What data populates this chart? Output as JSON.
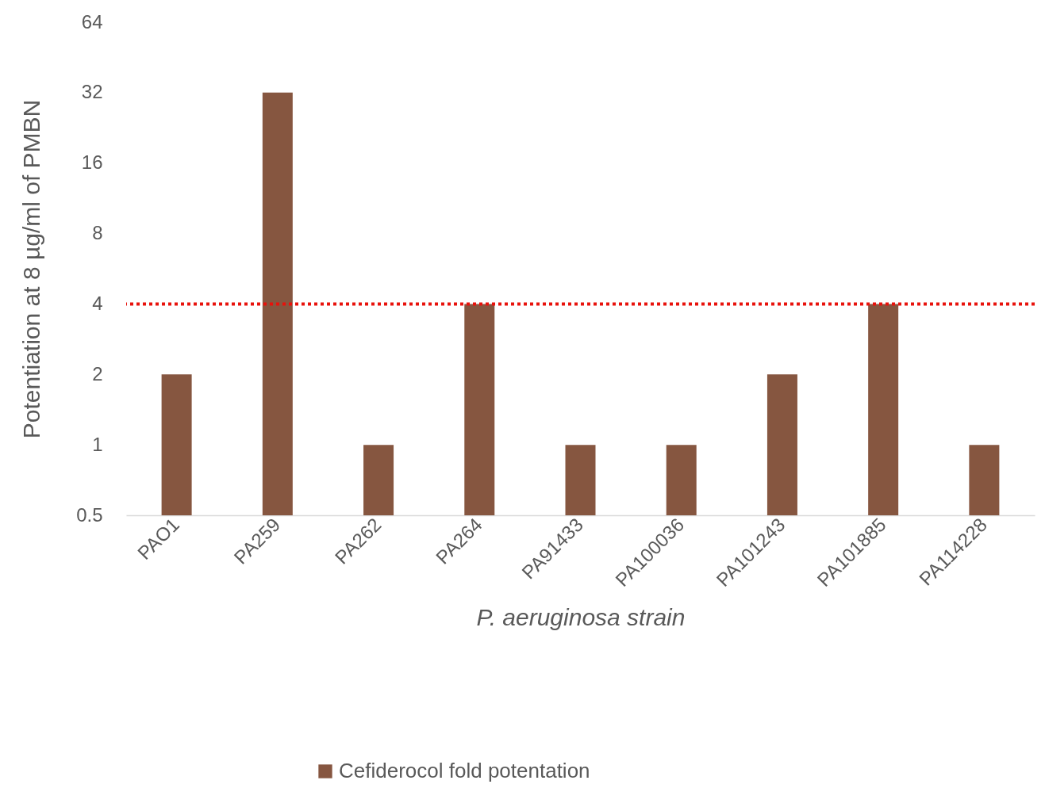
{
  "chart_data": {
    "type": "bar",
    "xlabel": "P. aeruginosa strain",
    "ylabel": "Potentiation at 8 µg/ml of PMBN",
    "categories": [
      "PAO1",
      "PA259",
      "PA262",
      "PA264",
      "PA91433",
      "PA100036",
      "PA101243",
      "PA101885",
      "PA114228"
    ],
    "series": [
      {
        "name": "Cefiderocol fold potentation",
        "color": "#865640",
        "values": [
          2,
          32,
          1,
          4,
          1,
          1,
          2,
          4,
          1
        ]
      }
    ],
    "log": true,
    "ylim": [
      0.5,
      64
    ],
    "yticks": [
      0.5,
      1,
      2,
      4,
      8,
      16,
      32,
      64
    ],
    "ref_lines": [
      {
        "axis": "y",
        "value": 4,
        "color": "#e8120c",
        "line_style": "dotted"
      }
    ],
    "grid": false,
    "legend": "bottom"
  }
}
